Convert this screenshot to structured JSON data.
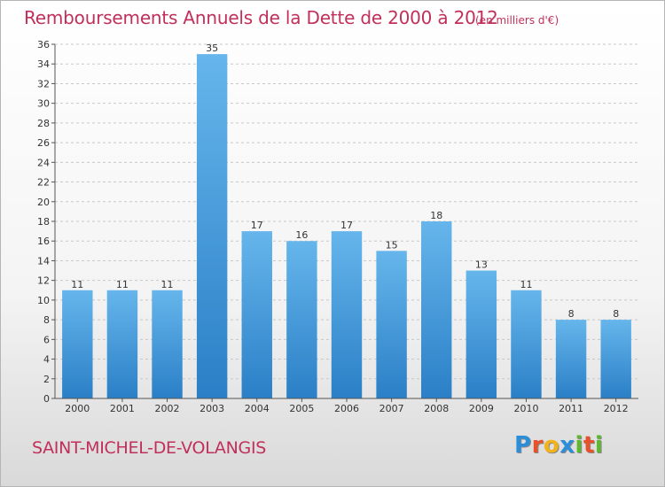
{
  "title": "Remboursements Annuels de la Dette de 2000 à 2012",
  "unit": "(en milliers d'€)",
  "town": "SAINT-MICHEL-DE-VOLANGIS",
  "logo": {
    "letters": [
      "P",
      "r",
      "o",
      "x",
      "i",
      "t",
      "i"
    ],
    "colors": [
      "#2a8fd8",
      "#e8522a",
      "#f2b21c",
      "#2a8fd8",
      "#5cb82e",
      "#e8522a",
      "#5cb82e"
    ]
  },
  "colors": {
    "bar_light": "#66b6ec",
    "bar_dark": "#2a7fc6",
    "grid": "#c8c8c8",
    "axis": "#555555"
  },
  "chart_data": {
    "type": "bar",
    "title": "Remboursements Annuels de la Dette de 2000 à 2012",
    "xlabel": "",
    "ylabel": "",
    "categories": [
      "2000",
      "2001",
      "2002",
      "2003",
      "2004",
      "2005",
      "2006",
      "2007",
      "2008",
      "2009",
      "2010",
      "2011",
      "2012"
    ],
    "values": [
      11,
      11,
      11,
      35,
      17,
      16,
      17,
      15,
      18,
      13,
      11,
      8,
      8
    ],
    "ylim": [
      0,
      36
    ],
    "yticks": [
      0,
      2,
      4,
      6,
      8,
      10,
      12,
      14,
      16,
      18,
      20,
      22,
      24,
      26,
      28,
      30,
      32,
      34,
      36
    ],
    "grid": true,
    "legend": "none"
  }
}
